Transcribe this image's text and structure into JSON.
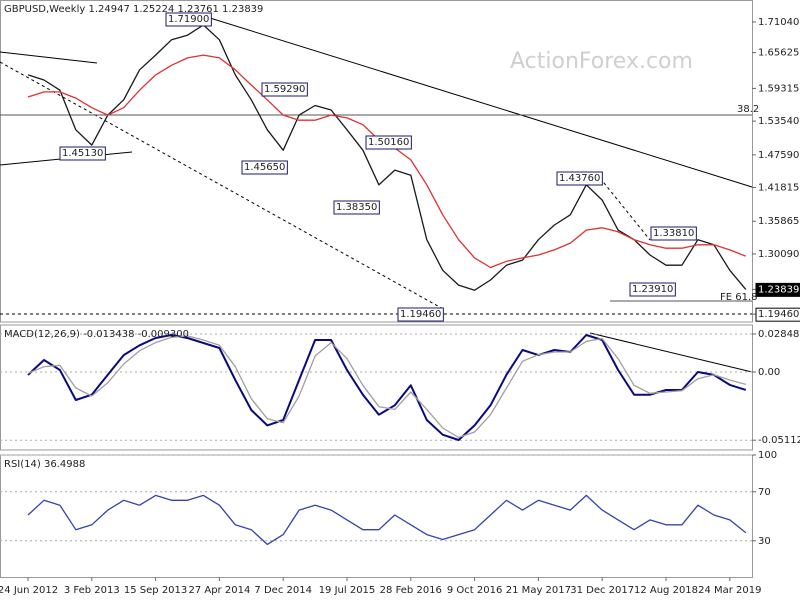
{
  "chart_data": [
    {
      "type": "line",
      "title": "GBPUSD,Weekly 1.24947 1.25224 1.23761 1.23839",
      "watermark": "ActionForex.com",
      "categories": [
        "24 Jun 2012",
        null,
        null,
        null,
        "3 Feb 2013",
        null,
        null,
        null,
        "15 Sep 2013",
        null,
        null,
        null,
        "27 Apr 2014",
        null,
        null,
        null,
        "7 Dec 2014",
        null,
        null,
        null,
        "19 Jul 2015",
        null,
        null,
        null,
        "28 Feb 2016",
        null,
        null,
        null,
        "9 Oct 2016",
        null,
        null,
        null,
        "21 May 2017",
        null,
        null,
        null,
        "31 Dec 2017",
        null,
        null,
        null,
        "12 Aug 2018",
        null,
        null,
        null,
        "24 Mar 2019",
        null
      ],
      "series": [
        {
          "color": "#1a1a1a",
          "values": [
            1.617,
            1.608,
            1.59,
            1.52,
            1.493,
            1.546,
            1.573,
            1.626,
            1.652,
            1.679,
            1.687,
            1.705,
            1.679,
            1.617,
            1.573,
            1.52,
            1.484,
            1.546,
            1.563,
            1.555,
            1.52,
            1.484,
            1.423,
            1.449,
            1.44,
            1.326,
            1.272,
            1.246,
            1.237,
            1.255,
            1.281,
            1.29,
            1.326,
            1.352,
            1.37,
            1.423,
            1.396,
            1.343,
            1.326,
            1.299,
            1.281,
            1.281,
            1.326,
            1.317,
            1.272,
            1.2384
          ]
        },
        {
          "color": "#e03030",
          "values": [
            1.578,
            1.587,
            1.587,
            1.576,
            1.559,
            1.546,
            1.559,
            1.59,
            1.617,
            1.634,
            1.647,
            1.652,
            1.647,
            1.626,
            1.599,
            1.573,
            1.546,
            1.537,
            1.537,
            1.546,
            1.541,
            1.529,
            1.502,
            1.488,
            1.467,
            1.423,
            1.37,
            1.326,
            1.294,
            1.277,
            1.288,
            1.294,
            1.299,
            1.308,
            1.32,
            1.343,
            1.347,
            1.34,
            1.326,
            1.317,
            1.311,
            1.311,
            1.317,
            1.317,
            1.308,
            1.297
          ]
        }
      ],
      "ylim": [
        1.1808,
        1.7492
      ],
      "yticks": [
        {
          "value": 1.7104,
          "label": "1.71040"
        },
        {
          "value": 1.65625,
          "label": "1.65625"
        },
        {
          "value": 1.59315,
          "label": "1.59315"
        },
        {
          "value": 1.5354,
          "label": "1.53540"
        },
        {
          "value": 1.4759,
          "label": "1.47590"
        },
        {
          "value": 1.41815,
          "label": "1.41815"
        },
        1.35865,
        {
          "value": 1.3009,
          "label": "1.30090"
        },
        1.23839,
        {
          "value": 1.1946,
          "label": "1.19460"
        }
      ],
      "grid": false,
      "annotations": [
        "1.71900",
        "1.59290",
        "1.45130",
        "1.45650",
        "1.50160",
        "1.38350",
        "1.19460",
        "1.43760",
        "1.33810",
        "1.23910",
        "38.2",
        "FE 61.8"
      ]
    },
    {
      "type": "line",
      "title": "MACD(12,26,9) -0.013438 -0.009300",
      "series": [
        {
          "color": "#0a0a80",
          "values": [
            -0.0022,
            0.009,
            0.0015,
            -0.021,
            -0.017,
            -0.002,
            0.0127,
            0.02,
            0.0255,
            0.0277,
            0.0255,
            0.0217,
            0.018,
            -0.006,
            -0.0285,
            -0.04,
            -0.036,
            -0.006,
            0.024,
            0.024,
            0.0015,
            -0.017,
            -0.032,
            -0.025,
            -0.01,
            -0.036,
            -0.047,
            -0.051,
            -0.04,
            -0.025,
            -0.002,
            0.0165,
            0.0127,
            0.0165,
            0.015,
            0.0277,
            0.024,
            0.0015,
            -0.017,
            -0.017,
            -0.0135,
            -0.0135,
            0,
            -0.0022,
            -0.0097,
            -0.0134
          ]
        },
        {
          "color": "#a0a0a0",
          "values": [
            -0.001,
            0.004,
            0.005,
            -0.012,
            -0.018,
            -0.008,
            0.006,
            0.016,
            0.022,
            0.026,
            0.027,
            0.024,
            0.02,
            0.004,
            -0.02,
            -0.035,
            -0.038,
            -0.018,
            0.012,
            0.022,
            0.01,
            -0.01,
            -0.026,
            -0.028,
            -0.015,
            -0.028,
            -0.042,
            -0.049,
            -0.045,
            -0.032,
            -0.012,
            0.008,
            0.013,
            0.015,
            0.015,
            0.023,
            0.025,
            0.01,
            -0.01,
            -0.016,
            -0.015,
            -0.014,
            -0.005,
            -0.002,
            -0.006,
            -0.0093
          ]
        }
      ],
      "ylim": [
        -0.05847,
        0.03523
      ],
      "yticks": [
        0.028489,
        {
          "value": 0,
          "label": "0.00"
        },
        -0.051125
      ],
      "grid": true
    },
    {
      "type": "line",
      "title": "RSI(14) 36.4988",
      "series": [
        {
          "color": "#3344aa",
          "values": [
            51,
            63,
            59,
            39,
            43,
            55,
            63,
            59,
            67,
            63,
            63,
            67,
            59,
            43,
            39,
            27,
            35,
            55,
            59,
            55,
            47,
            39,
            39,
            51,
            43,
            35,
            31,
            35,
            39,
            51,
            63,
            55,
            63,
            59,
            55,
            67,
            55,
            47,
            39,
            47,
            43,
            43,
            59,
            51,
            47,
            36.5
          ]
        }
      ],
      "ylim": [
        0,
        100
      ],
      "yticks": [
        100,
        70,
        30
      ],
      "grid": true
    }
  ]
}
